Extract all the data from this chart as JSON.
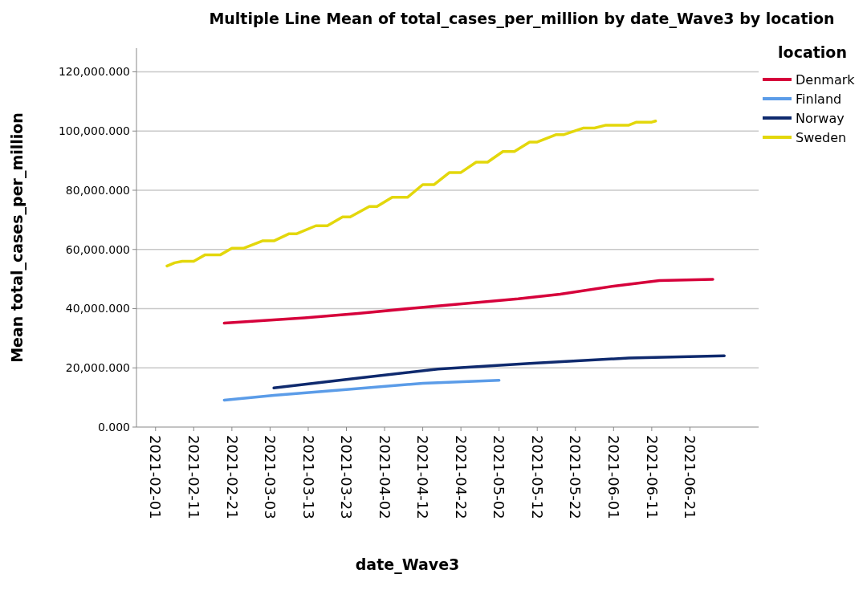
{
  "chart_data": {
    "type": "line",
    "title": "Multiple Line Mean of total_cases_per_million by date_Wave3 by location",
    "xlabel": "date_Wave3",
    "ylabel": "Mean total_cases_per_million",
    "legend_title": "location",
    "legend": "right",
    "grid": "y",
    "line_style": "solid",
    "marker": "none",
    "xlim": [
      "2021-01-27",
      "2021-07-09"
    ],
    "xticks": [
      "2021-02-01",
      "2021-02-11",
      "2021-02-21",
      "2021-03-03",
      "2021-03-13",
      "2021-03-23",
      "2021-04-02",
      "2021-04-12",
      "2021-04-22",
      "2021-05-02",
      "2021-05-12",
      "2021-05-22",
      "2021-06-01",
      "2021-06-11",
      "2021-06-21"
    ],
    "ylim": [
      0,
      128000
    ],
    "yticks": [
      {
        "value": 0,
        "label": "0.000"
      },
      {
        "value": 20000,
        "label": "20,000.000"
      },
      {
        "value": 40000,
        "label": "40,000.000"
      },
      {
        "value": 60000,
        "label": "60,000.000"
      },
      {
        "value": 80000,
        "label": "80,000.000"
      },
      {
        "value": 100000,
        "label": "100,000.000"
      },
      {
        "value": 120000,
        "label": "120,000.000"
      }
    ],
    "series": [
      {
        "name": "Denmark",
        "color": "#d6003b",
        "x": [
          "2021-02-19",
          "2021-03-12",
          "2021-03-26",
          "2021-04-14",
          "2021-05-07",
          "2021-05-18",
          "2021-06-01",
          "2021-06-13",
          "2021-06-27"
        ],
        "values": [
          35100,
          36900,
          38400,
          40700,
          43300,
          44900,
          47600,
          49500,
          49900
        ]
      },
      {
        "name": "Finland",
        "color": "#5b9ce8",
        "x": [
          "2021-02-19",
          "2021-03-04",
          "2021-03-23",
          "2021-04-12",
          "2021-05-02"
        ],
        "values": [
          9100,
          10700,
          12700,
          14800,
          15800
        ]
      },
      {
        "name": "Norway",
        "color": "#0f2a6e",
        "x": [
          "2021-03-04",
          "2021-03-27",
          "2021-04-16",
          "2021-05-10",
          "2021-06-05",
          "2021-06-30"
        ],
        "values": [
          13200,
          16700,
          19600,
          21500,
          23300,
          24100
        ]
      },
      {
        "name": "Sweden",
        "color": "#e3d70b",
        "x": [
          "2021-02-04",
          "2021-02-06",
          "2021-02-08",
          "2021-02-11",
          "2021-02-14",
          "2021-02-18",
          "2021-02-21",
          "2021-02-24",
          "2021-03-01",
          "2021-03-04",
          "2021-03-08",
          "2021-03-10",
          "2021-03-15",
          "2021-03-18",
          "2021-03-22",
          "2021-03-24",
          "2021-03-29",
          "2021-03-31",
          "2021-04-04",
          "2021-04-08",
          "2021-04-12",
          "2021-04-15",
          "2021-04-19",
          "2021-04-22",
          "2021-04-26",
          "2021-04-29",
          "2021-05-03",
          "2021-05-06",
          "2021-05-10",
          "2021-05-12",
          "2021-05-17",
          "2021-05-19",
          "2021-05-24",
          "2021-05-27",
          "2021-05-30",
          "2021-06-05",
          "2021-06-07",
          "2021-06-11",
          "2021-06-12"
        ],
        "values": [
          54400,
          55500,
          56000,
          56000,
          58200,
          58200,
          60400,
          60400,
          62900,
          62900,
          65300,
          65300,
          68000,
          68000,
          71000,
          71000,
          74500,
          74500,
          77600,
          77600,
          81900,
          81900,
          86000,
          86000,
          89500,
          89500,
          93100,
          93100,
          96300,
          96300,
          98800,
          98800,
          101000,
          101000,
          102000,
          102000,
          103000,
          103000,
          103400
        ]
      }
    ]
  }
}
